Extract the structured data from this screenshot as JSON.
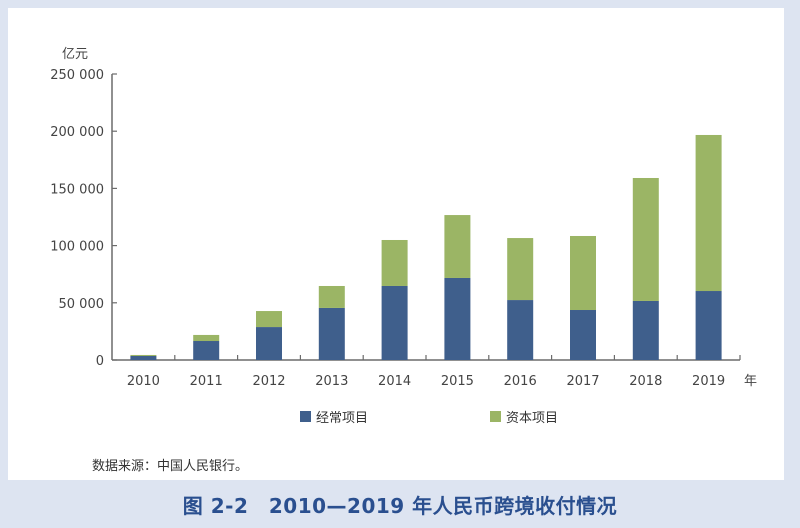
{
  "chart_data": {
    "type": "bar",
    "stacked": true,
    "title": "图 2-2　2010—2019 年人民币跨境收付情况",
    "xlabel": "年",
    "ylabel": "亿元",
    "ylim": [
      0,
      250000
    ],
    "yticks": [
      0,
      50000,
      100000,
      150000,
      200000,
      250000
    ],
    "ytick_labels": [
      "0",
      "50 000",
      "100 000",
      "150 000",
      "200 000",
      "250 000"
    ],
    "categories": [
      "2010",
      "2011",
      "2012",
      "2013",
      "2014",
      "2015",
      "2016",
      "2017",
      "2018",
      "2019"
    ],
    "series": [
      {
        "name": "经常项目",
        "color": "#3f5f8c",
        "values": [
          3500,
          16600,
          28800,
          45500,
          64700,
          71700,
          52400,
          43700,
          51600,
          60300
        ]
      },
      {
        "name": "资本项目",
        "color": "#9bb565",
        "values": [
          900,
          5300,
          14000,
          19200,
          40200,
          55000,
          54200,
          64700,
          107500,
          136400
        ]
      }
    ],
    "legend_position": "bottom",
    "grid": false,
    "source": "数据来源：中国人民银行。"
  },
  "axis": {
    "y_unit": "亿元",
    "x_unit": "年"
  },
  "legend": [
    {
      "label": "经常项目",
      "color": "#3f5f8c"
    },
    {
      "label": "资本项目",
      "color": "#9bb565"
    }
  ],
  "source": "数据来源：中国人民银行。",
  "caption": "图 2-2　2010—2019 年人民币跨境收付情况"
}
